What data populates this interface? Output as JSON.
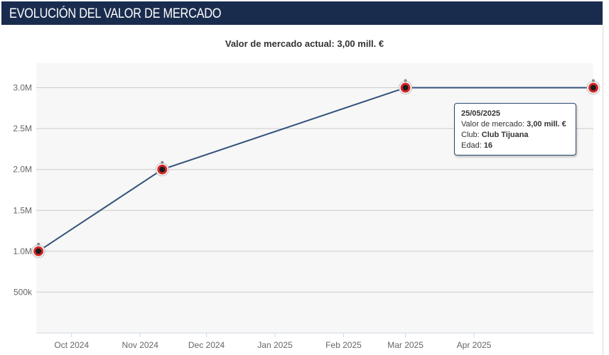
{
  "header": {
    "title": "EVOLUCIÓN DEL VALOR DE MERCADO"
  },
  "colors": {
    "header_bg": "#1a2c4e",
    "line": "#34527a",
    "plot_bg": "#f7f7f7",
    "grid": "#cccccc",
    "marker": "#d42a2a"
  },
  "chart_data": {
    "type": "line",
    "title": "Valor de mercado actual: 3,00 mill. €",
    "xlabel": "",
    "ylabel": "",
    "x_range": [
      "2024-09-15",
      "2025-05-25"
    ],
    "ylim": [
      0,
      3300000
    ],
    "x_ticks": [
      {
        "label": "Oct 2024",
        "date": "2024-10-01"
      },
      {
        "label": "Nov 2024",
        "date": "2024-11-01"
      },
      {
        "label": "Dec 2024",
        "date": "2024-12-01"
      },
      {
        "label": "Jan 2025",
        "date": "2025-01-01"
      },
      {
        "label": "Feb 2025",
        "date": "2025-02-01"
      },
      {
        "label": "Mar 2025",
        "date": "2025-03-01"
      },
      {
        "label": "Apr 2025",
        "date": "2025-04-01"
      }
    ],
    "y_ticks": [
      {
        "label": "500k",
        "value": 500000
      },
      {
        "label": "1.0M",
        "value": 1000000
      },
      {
        "label": "1.5M",
        "value": 1500000
      },
      {
        "label": "2.0M",
        "value": 2000000
      },
      {
        "label": "2.5M",
        "value": 2500000
      },
      {
        "label": "3.0M",
        "value": 3000000
      }
    ],
    "grid": true,
    "legend": "none",
    "series": [
      {
        "points": [
          {
            "date": "2024-09-16",
            "value": 1000000
          },
          {
            "date": "2024-11-11",
            "value": 2000000
          },
          {
            "date": "2025-03-01",
            "value": 3000000
          },
          {
            "date": "2025-05-25",
            "value": 3000000
          }
        ]
      }
    ],
    "tooltip": {
      "date": "25/05/2025",
      "value_label": "Valor de mercado:",
      "value": "3,00 mill. €",
      "club_label": "Club:",
      "club": "Club Tijuana",
      "age_label": "Edad:",
      "age": "16"
    }
  }
}
